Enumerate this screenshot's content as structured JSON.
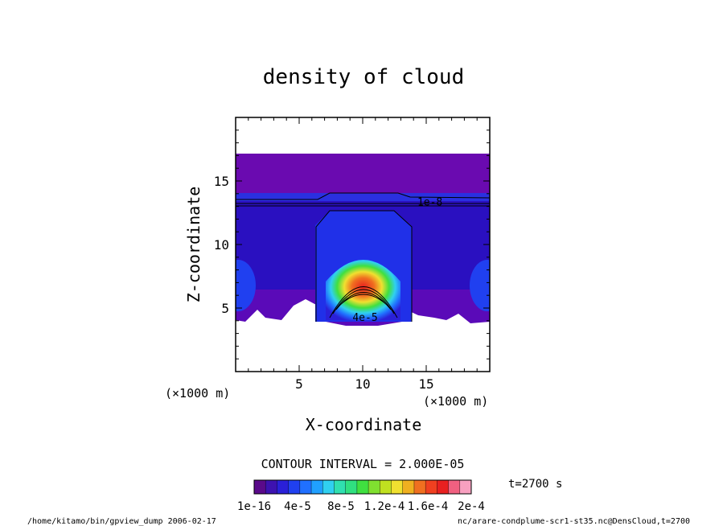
{
  "chart_data": {
    "type": "heatmap",
    "title": "density of cloud",
    "xlabel": "X-coordinate",
    "ylabel": "Z-coordinate",
    "x_unit": "(×1000 m)",
    "y_unit": "(×1000 m)",
    "xlim": [
      0,
      20
    ],
    "ylim": [
      0,
      20
    ],
    "x_ticks": [
      5,
      10,
      15
    ],
    "y_ticks": [
      5,
      10,
      15
    ],
    "contour_interval_text": "CONTOUR INTERVAL = 2.000E-05",
    "time_text": "t=2700 s",
    "contour_labels": [
      {
        "text": "1e-8",
        "x": 14.3,
        "z": 13.4
      },
      {
        "text": "4e-5",
        "x": 9.2,
        "z": 4.3
      }
    ],
    "colorbar": {
      "tick_labels": [
        "1e-16",
        "4e-5",
        "8e-5",
        "1.2e-4",
        "1.6e-4",
        "2e-4"
      ],
      "colors": [
        "#5a0a8a",
        "#3d12b0",
        "#2a20d8",
        "#2040f0",
        "#2070ff",
        "#20a0ff",
        "#30d0f0",
        "#30e0b0",
        "#30e080",
        "#40e040",
        "#80e030",
        "#c0e020",
        "#f0e030",
        "#f0b020",
        "#f07020",
        "#f04020",
        "#e82020",
        "#f06080",
        "#f8a0c0"
      ]
    },
    "footer_left": "/home/kitamo/bin/gpview_dump  2006-02-17",
    "footer_right": "nc/arare-condplume-scr1-st35.nc@DensCloud,t=2700"
  }
}
